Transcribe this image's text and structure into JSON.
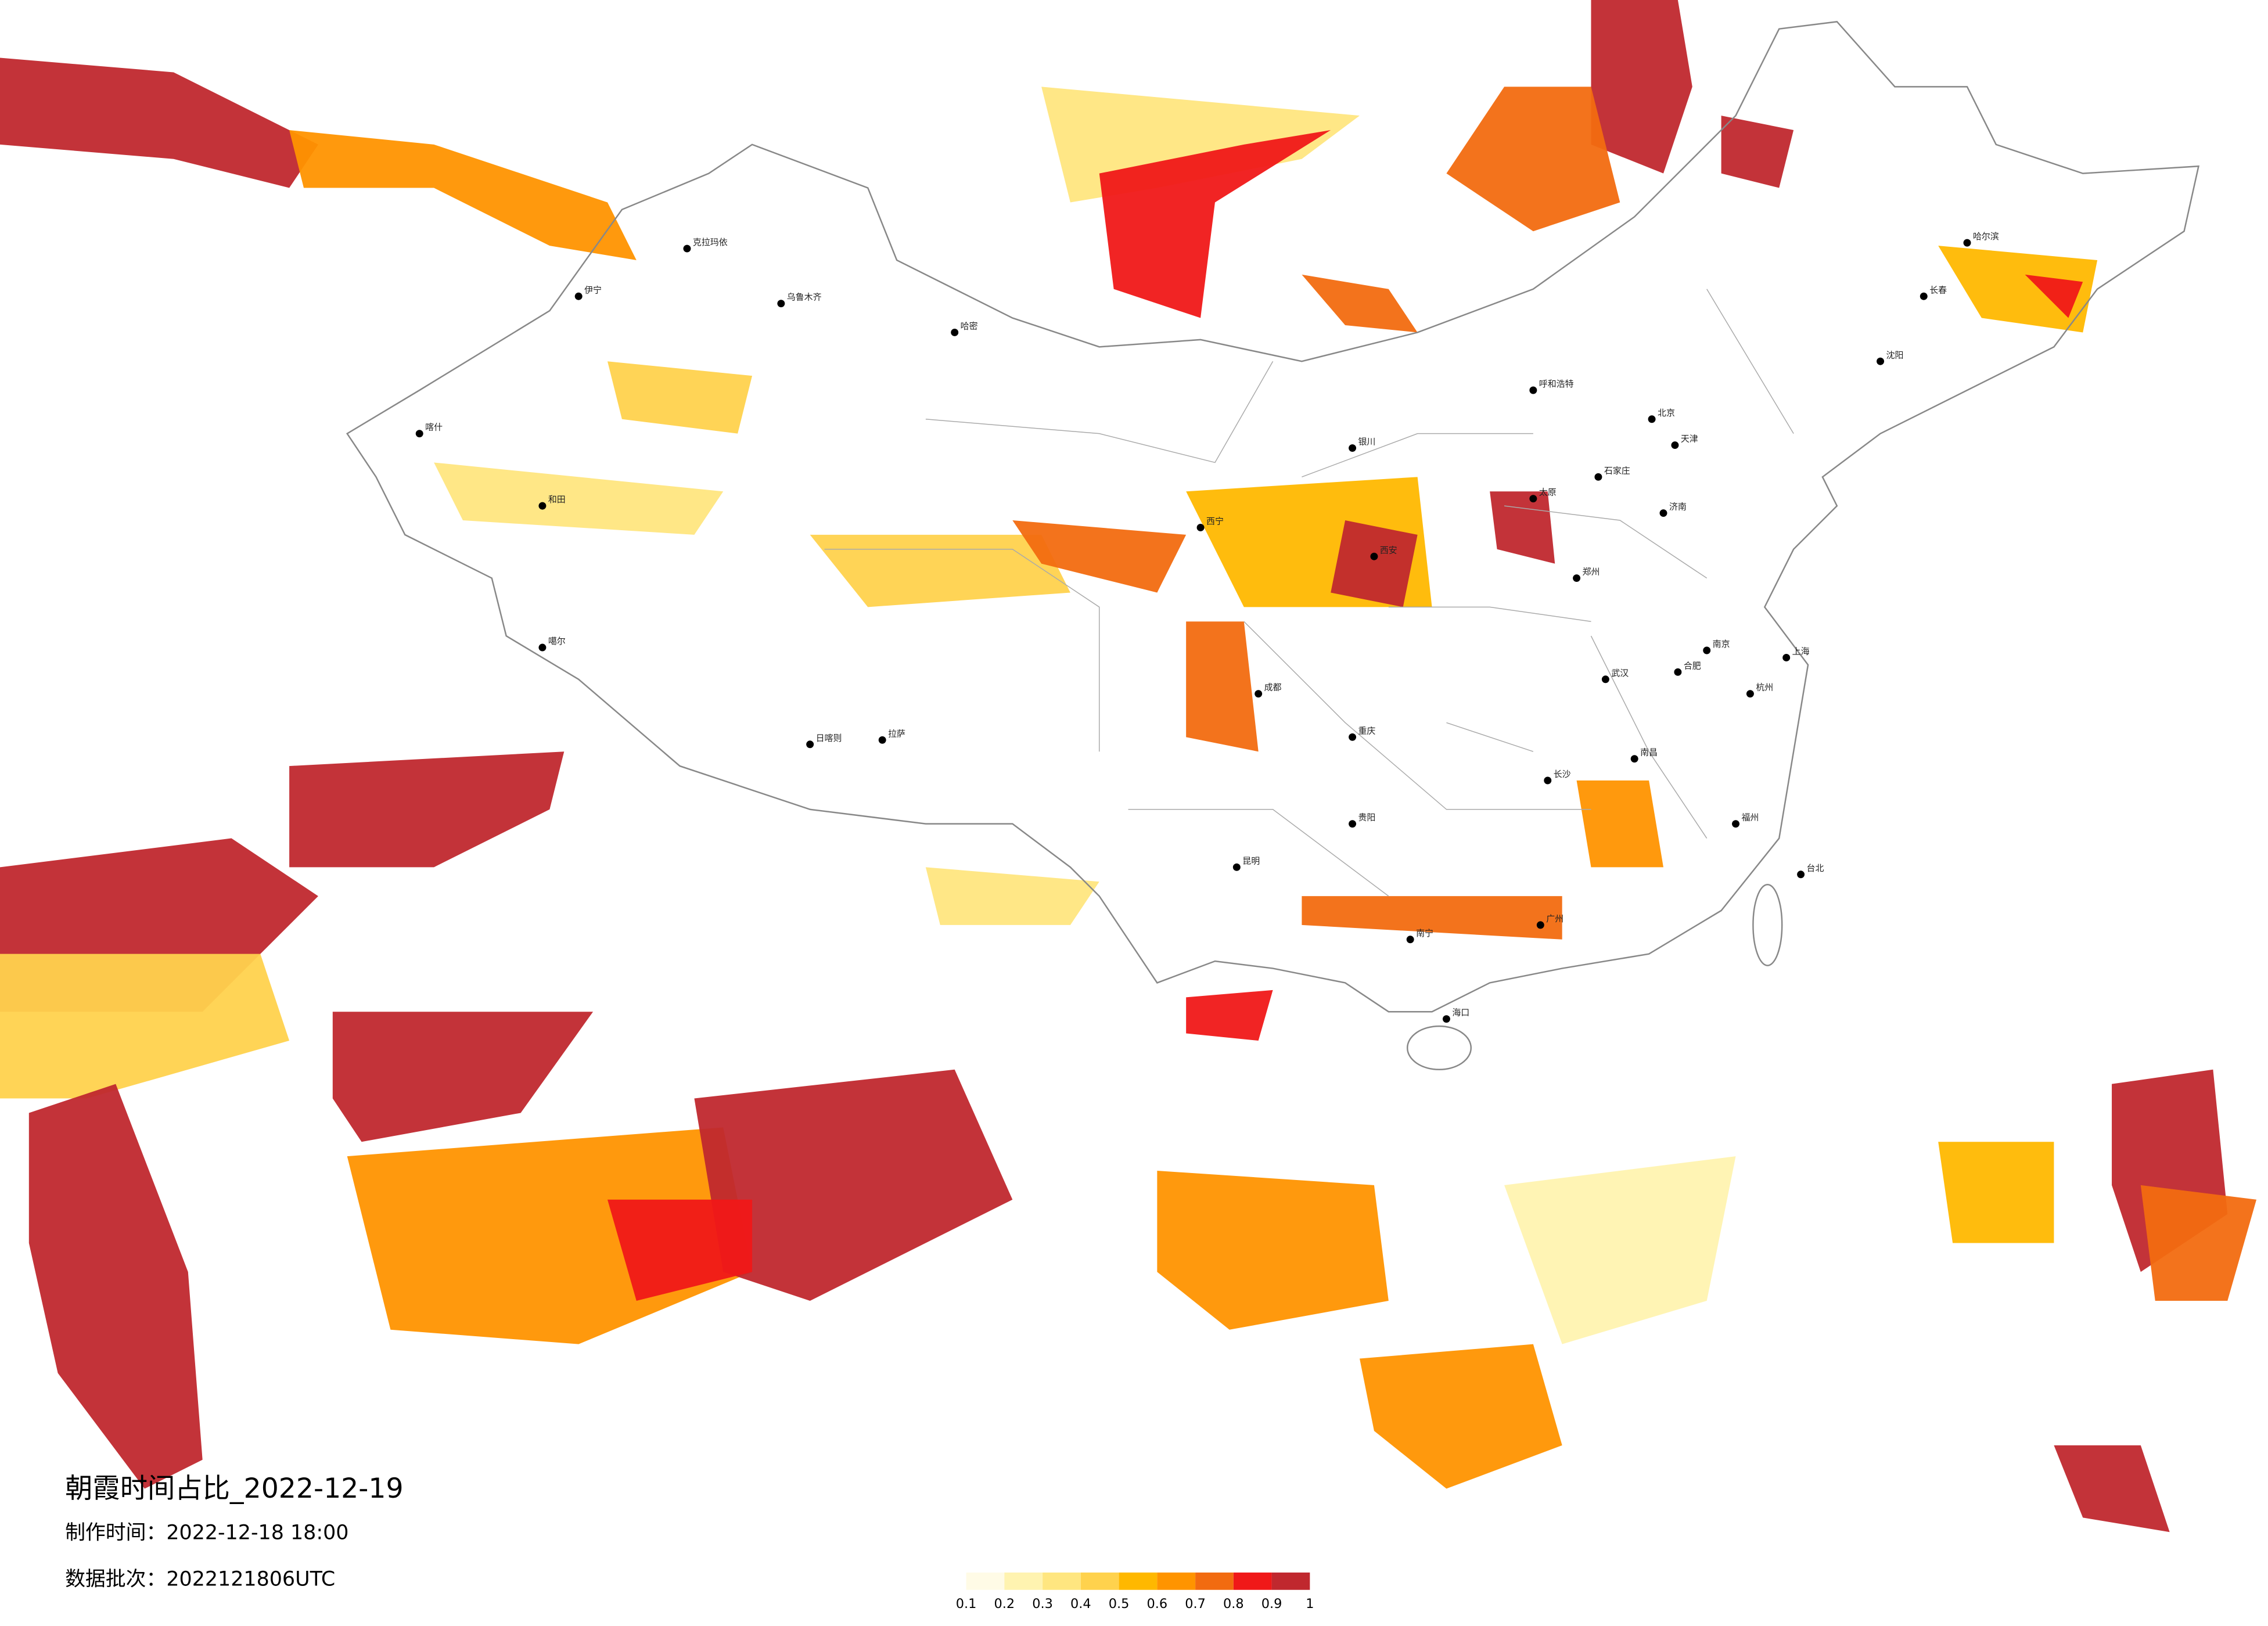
{
  "map": {
    "title": "朝霞时间占比_2022-12-19",
    "made_time": "制作时间：2022-12-18 18:00",
    "batch": "数据批次：2022121806UTC",
    "legend": {
      "ticks": [
        0.1,
        0.2,
        0.3,
        0.4,
        0.5,
        0.6,
        0.7,
        0.8,
        0.9,
        1
      ],
      "colors": [
        "#fffbe6",
        "#fff3b0",
        "#ffe680",
        "#ffd24d",
        "#ffb800",
        "#ff9400",
        "#f26b10",
        "#f01818",
        "#c0282e"
      ]
    },
    "cities": [
      "克拉玛依",
      "伊宁",
      "乌鲁木齐",
      "哈密",
      "喀什",
      "和田",
      "噶尔",
      "日喀则",
      "拉萨",
      "西宁",
      "银川",
      "呼和浩特",
      "北京",
      "天津",
      "石家庄",
      "太原",
      "济南",
      "郑州",
      "西安",
      "成都",
      "重庆",
      "武汉",
      "长沙",
      "南昌",
      "杭州",
      "上海",
      "南京",
      "合肥",
      "福州",
      "广州",
      "南宁",
      "昆明",
      "贵阳",
      "海口",
      "台北",
      "哈尔滨",
      "长春",
      "沈阳"
    ]
  }
}
